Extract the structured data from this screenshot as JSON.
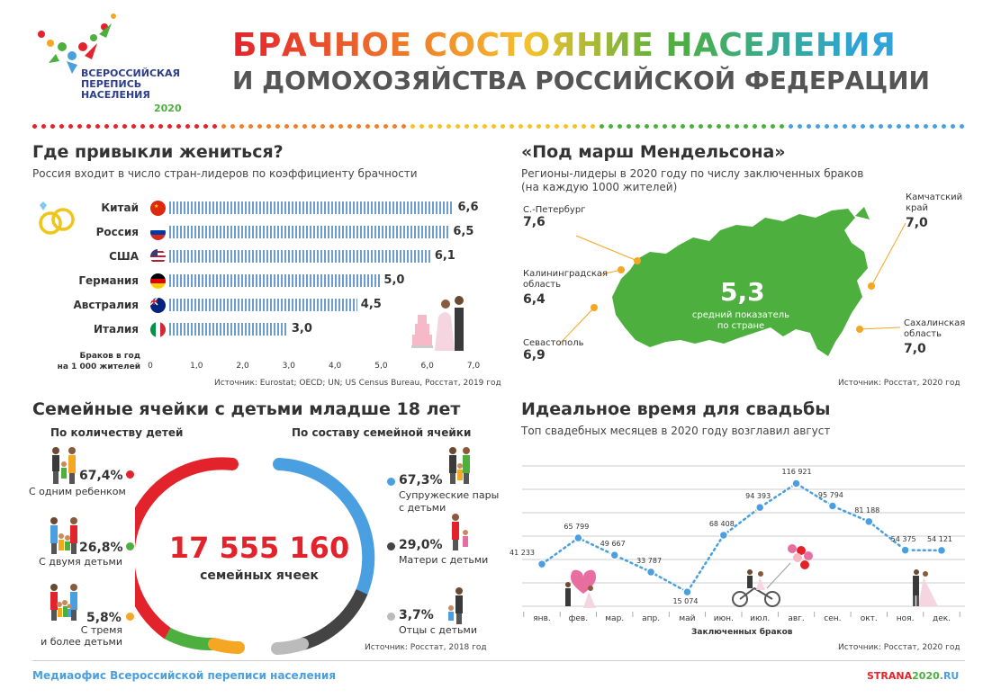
{
  "logo": {
    "line1": "ВСЕРОССИЙСКАЯ",
    "line2": "ПЕРЕПИСЬ",
    "line3": "НАСЕЛЕНИЯ",
    "year": "2020"
  },
  "header": {
    "title_line1": "БРАЧНОЕ СОСТОЯНИЕ НАСЕЛЕНИЯ",
    "title_line2": "И ДОМОХОЗЯЙСТВА РОССИЙСКОЙ ФЕДЕРАЦИИ"
  },
  "marriage": {
    "title": "Где привыкли жениться?",
    "subtitle": "Россия входит в число стран-лидеров по коэффициенту брачности",
    "source": "Источник: Eurostat; OECD; UN; US Census Bureau, Росстат, 2019 год"
  },
  "map": {
    "title": "«Под марш Мендельсона»",
    "subtitle_line1": "Регионы-лидеры в 2020 году по числу заключенных браков",
    "subtitle_line2": "(на каждую 1000 жителей)",
    "center_value": "5,3",
    "center_label_line1": "средний показатель",
    "center_label_line2": "по стране",
    "source": "Источник: Росстат, 2020 год",
    "regions": [
      {
        "name_line1": "С.-Петербург",
        "name_line2": "",
        "value": "7,6"
      },
      {
        "name_line1": "Калининградская",
        "name_line2": "область",
        "value": "6,4"
      },
      {
        "name_line1": "Севастополь",
        "name_line2": "",
        "value": "6,9"
      },
      {
        "name_line1": "Камчатский",
        "name_line2": "край",
        "value": "7,0"
      },
      {
        "name_line1": "Сахалинская",
        "name_line2": "область",
        "value": "7,0"
      }
    ]
  },
  "families": {
    "title": "Семейные ячейки с детьми младше 18 лет",
    "left_header": "По количеству детей",
    "right_header": "По составу семейной ячейки",
    "total": "17 555 160",
    "total_label": "семейных ячеек",
    "source": "Источник: Росстат, 2018 год",
    "by_children": [
      {
        "pct": "67,4%",
        "label_line1": "С одним ребенком",
        "label_line2": "",
        "color": "#e3232c"
      },
      {
        "pct": "26,8%",
        "label_line1": "С двумя детьми",
        "label_line2": "",
        "color": "#4caf3e"
      },
      {
        "pct": "5,8%",
        "label_line1": "С тремя",
        "label_line2": "и более детьми",
        "color": "#f5a623"
      }
    ],
    "by_composition": [
      {
        "pct": "67,3%",
        "label_line1": "Супружеские пары",
        "label_line2": "с детьми",
        "color": "#4a9fe0"
      },
      {
        "pct": "29,0%",
        "label_line1": "Матери с детьми",
        "label_line2": "",
        "color": "#444444"
      },
      {
        "pct": "3,7%",
        "label_line1": "Отцы с детьми",
        "label_line2": "",
        "color": "#bbbbbb"
      }
    ]
  },
  "wedding": {
    "title": "Идеальное время для свадьбы",
    "subtitle": "Топ свадебных месяцев в 2020 году возглавил август",
    "source": "Источник: Росстат, 2020 год"
  },
  "footer": {
    "left": "Медиаофис Всероссийской переписи населения",
    "right_a": "STRANA",
    "right_b": "2020",
    "right_c": ".RU"
  },
  "chart_data": [
    {
      "type": "bar",
      "orientation": "horizontal",
      "categories": [
        "Китай",
        "Россия",
        "США",
        "Германия",
        "Австралия",
        "Италия"
      ],
      "values": [
        6.6,
        6.5,
        6.1,
        5.0,
        4.5,
        3.0
      ],
      "value_labels": [
        "6,6",
        "6,5",
        "6,1",
        "5,0",
        "4,5",
        "3,0"
      ],
      "xlabel": "Браков в год на 1 000 жителей",
      "xlabel_line1": "Браков в год",
      "xlabel_line2": "на 1 000 жителей",
      "xlim": [
        0,
        7
      ],
      "xticks": [
        "0",
        "1,0",
        "2,0",
        "3,0",
        "4,0",
        "5,0",
        "6,0",
        "7,0"
      ],
      "colors": [
        "#6e9ccc"
      ]
    },
    {
      "type": "line",
      "categories": [
        "янв.",
        "фев.",
        "мар.",
        "апр.",
        "май",
        "июн.",
        "июл.",
        "авг.",
        "сен.",
        "окт.",
        "ноя.",
        "дек."
      ],
      "values": [
        41233,
        65799,
        49667,
        33787,
        15074,
        68408,
        94393,
        116921,
        95794,
        81188,
        54375,
        54121
      ],
      "value_labels": [
        "41 233",
        "65 799",
        "49 667",
        "33 787",
        "15 074",
        "68 408",
        "94 393",
        "116 921",
        "95 794",
        "81 188",
        "54 375",
        "54 121"
      ],
      "xlabel": "Заключенных браков",
      "ylim": [
        0,
        130000
      ],
      "grid": true,
      "colors": [
        "#4a9fe0"
      ]
    }
  ]
}
